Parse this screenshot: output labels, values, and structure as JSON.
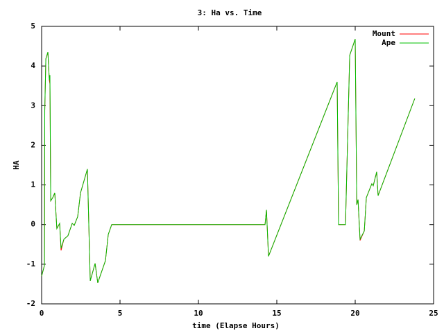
{
  "chart_data": {
    "type": "line",
    "title": "3: Ha vs. Time",
    "x_label": "time (Elapse Hours)",
    "y_label": "HA",
    "x": [
      0,
      0.18,
      0.2,
      0.27,
      0.4,
      0.49,
      0.53,
      0.58,
      0.71,
      0.84,
      0.97,
      1.15,
      1.24,
      1.42,
      1.68,
      1.95,
      2.08,
      2.3,
      2.48,
      2.92,
      3.1,
      3.41,
      3.58,
      4.07,
      4.25,
      4.47,
      14.25,
      14.34,
      14.47,
      18.85,
      18.94,
      19.38,
      19.65,
      20.0,
      20.1,
      20.18,
      20.31,
      20.58,
      20.71,
      21.06,
      21.15,
      21.37,
      21.46,
      23.8
    ],
    "series": [
      {
        "name": "Mount",
        "color": "#ff0000",
        "values": [
          -1.3,
          -1.03,
          2.87,
          4.18,
          4.35,
          3.65,
          3.55,
          0.6,
          0.68,
          0.8,
          -0.1,
          0.03,
          -0.65,
          -0.37,
          -0.28,
          0.03,
          -0.02,
          0.2,
          0.8,
          1.4,
          -1.42,
          -0.98,
          -1.47,
          -0.91,
          -0.25,
          0,
          0,
          0.37,
          -0.8,
          3.6,
          0,
          0,
          4.27,
          4.68,
          0.5,
          0.63,
          -0.4,
          -0.16,
          0.68,
          1.03,
          0.98,
          1.33,
          0.73,
          3.18
        ]
      },
      {
        "name": "Ape",
        "color": "#00c000",
        "values": [
          -1.3,
          -1.03,
          2.87,
          4.18,
          4.35,
          3.65,
          3.77,
          0.6,
          0.68,
          0.8,
          -0.1,
          0.03,
          -0.6,
          -0.37,
          -0.28,
          0.03,
          -0.02,
          0.2,
          0.8,
          1.4,
          -1.42,
          -0.98,
          -1.47,
          -0.91,
          -0.25,
          0,
          0,
          0.37,
          -0.8,
          3.6,
          0,
          0,
          4.27,
          4.68,
          0.5,
          0.63,
          -0.37,
          -0.16,
          0.68,
          1.03,
          0.98,
          1.33,
          0.73,
          3.18
        ]
      }
    ],
    "xlim": [
      0,
      25
    ],
    "xticks": [
      0,
      5,
      10,
      15,
      20,
      25
    ],
    "ylim": [
      -2,
      5
    ],
    "yticks": [
      -2,
      -1,
      0,
      1,
      2,
      3,
      4,
      5
    ],
    "grid": false,
    "legend": "top-right"
  }
}
